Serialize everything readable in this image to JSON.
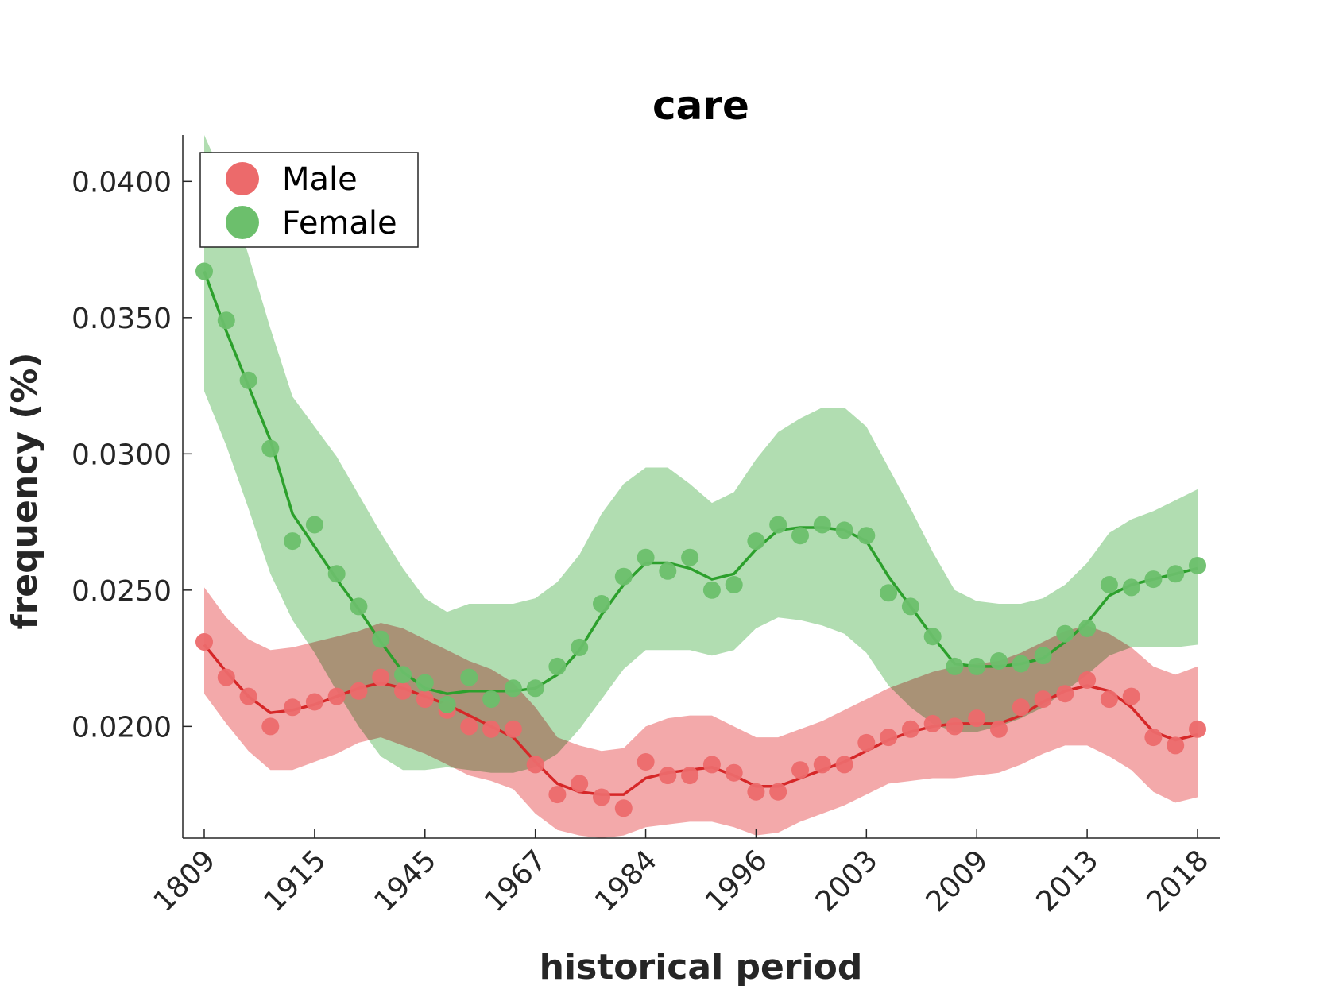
{
  "chart_data": {
    "type": "line",
    "title": "care",
    "xlabel": "historical period",
    "ylabel": "frequency (%)",
    "x_tick_labels": [
      "1809",
      "1915",
      "1945",
      "1967",
      "1984",
      "1996",
      "2003",
      "2009",
      "2013",
      "2018"
    ],
    "y_ticks": [
      0.02,
      0.025,
      0.03,
      0.035,
      0.04
    ],
    "y_tick_labels": [
      "0.0200",
      "0.0250",
      "0.0300",
      "0.0350",
      "0.0400"
    ],
    "ylim": [
      0.0159,
      0.0417
    ],
    "legend_placement": "top-left",
    "grid": false,
    "series": [
      {
        "name": "Male",
        "color": "#d62728",
        "marker_color": "#ec6a6b",
        "band_color": "#f2a0a1",
        "points": [
          0.0231,
          0.0218,
          0.0211,
          0.02,
          0.0207,
          0.0209,
          0.0211,
          0.0213,
          0.0218,
          0.0213,
          0.021,
          0.0206,
          0.02,
          0.0199,
          0.0199,
          0.0186,
          0.0175,
          0.0179,
          0.0174,
          0.017,
          0.0187,
          0.0182,
          0.0182,
          0.0186,
          0.0183,
          0.0176,
          0.0176,
          0.0184,
          0.0186,
          0.0186,
          0.0194,
          0.0196,
          0.0199,
          0.0201,
          0.02,
          0.0203,
          0.0199,
          0.0207,
          0.021,
          0.0212,
          0.0217,
          0.021,
          0.0211,
          0.0196,
          0.0193,
          0.0199
        ],
        "trend": [
          0.023,
          0.022,
          0.0211,
          0.0205,
          0.0206,
          0.0208,
          0.0211,
          0.0214,
          0.0216,
          0.0214,
          0.0211,
          0.0208,
          0.0204,
          0.02,
          0.0196,
          0.0187,
          0.0179,
          0.0176,
          0.0175,
          0.0175,
          0.0181,
          0.0183,
          0.0184,
          0.0185,
          0.0182,
          0.0178,
          0.0178,
          0.0181,
          0.0184,
          0.0187,
          0.0191,
          0.0195,
          0.0198,
          0.02,
          0.0201,
          0.0201,
          0.0201,
          0.0204,
          0.0209,
          0.0213,
          0.0215,
          0.0213,
          0.0207,
          0.0198,
          0.0195,
          0.0197
        ],
        "upper": [
          0.0251,
          0.024,
          0.0232,
          0.0228,
          0.0229,
          0.0231,
          0.0233,
          0.0235,
          0.0238,
          0.0236,
          0.0232,
          0.0228,
          0.0224,
          0.0221,
          0.0216,
          0.0207,
          0.0196,
          0.0193,
          0.0191,
          0.0192,
          0.02,
          0.0203,
          0.0204,
          0.0204,
          0.02,
          0.0196,
          0.0196,
          0.0199,
          0.0202,
          0.0206,
          0.021,
          0.0214,
          0.0217,
          0.022,
          0.0222,
          0.0223,
          0.0224,
          0.0227,
          0.0231,
          0.0235,
          0.0237,
          0.0234,
          0.0229,
          0.0222,
          0.0219,
          0.0222
        ],
        "lower": [
          0.0212,
          0.0201,
          0.0191,
          0.0184,
          0.0184,
          0.0187,
          0.019,
          0.0194,
          0.0196,
          0.0193,
          0.019,
          0.0186,
          0.0182,
          0.018,
          0.0177,
          0.0168,
          0.0162,
          0.016,
          0.0159,
          0.016,
          0.0163,
          0.0164,
          0.0165,
          0.0165,
          0.0163,
          0.016,
          0.0161,
          0.0165,
          0.0168,
          0.0171,
          0.0175,
          0.0179,
          0.018,
          0.0181,
          0.0181,
          0.0182,
          0.0183,
          0.0186,
          0.019,
          0.0193,
          0.0193,
          0.0189,
          0.0184,
          0.0176,
          0.0172,
          0.0174
        ]
      },
      {
        "name": "Female",
        "color": "#2ca02c",
        "marker_color": "#6cbf6c",
        "band_color": "#a8d9a8",
        "points": [
          0.0367,
          0.0349,
          0.0327,
          0.0302,
          0.0268,
          0.0274,
          0.0256,
          0.0244,
          0.0232,
          0.0219,
          0.0216,
          0.0208,
          0.0218,
          0.021,
          0.0214,
          0.0214,
          0.0222,
          0.0229,
          0.0245,
          0.0255,
          0.0262,
          0.0257,
          0.0262,
          0.025,
          0.0252,
          0.0268,
          0.0274,
          0.027,
          0.0274,
          0.0272,
          0.027,
          0.0249,
          0.0244,
          0.0233,
          0.0222,
          0.0222,
          0.0224,
          0.0223,
          0.0226,
          0.0234,
          0.0236,
          0.0252,
          0.0251,
          0.0254,
          0.0256,
          0.0259
        ],
        "trend": [
          0.0367,
          0.0345,
          0.0325,
          0.0305,
          0.0278,
          0.0266,
          0.0254,
          0.0243,
          0.0231,
          0.022,
          0.0214,
          0.0212,
          0.0213,
          0.0213,
          0.0213,
          0.0214,
          0.0219,
          0.0228,
          0.0241,
          0.0252,
          0.026,
          0.026,
          0.0258,
          0.0254,
          0.0256,
          0.0265,
          0.0272,
          0.0273,
          0.0273,
          0.0272,
          0.0268,
          0.0255,
          0.0244,
          0.0233,
          0.0223,
          0.0222,
          0.0222,
          0.0223,
          0.0225,
          0.0231,
          0.0238,
          0.0248,
          0.0252,
          0.0254,
          0.0256,
          0.0258
        ],
        "upper": [
          0.0417,
          0.0399,
          0.0373,
          0.0346,
          0.0321,
          0.031,
          0.0299,
          0.0285,
          0.0271,
          0.0258,
          0.0247,
          0.0242,
          0.0245,
          0.0245,
          0.0245,
          0.0247,
          0.0253,
          0.0263,
          0.0278,
          0.0289,
          0.0295,
          0.0295,
          0.0289,
          0.0282,
          0.0286,
          0.0298,
          0.0308,
          0.0313,
          0.0317,
          0.0317,
          0.031,
          0.0295,
          0.028,
          0.0264,
          0.025,
          0.0246,
          0.0245,
          0.0245,
          0.0247,
          0.0252,
          0.026,
          0.0271,
          0.0276,
          0.0279,
          0.0283,
          0.0287
        ],
        "lower": [
          0.0323,
          0.0303,
          0.028,
          0.0256,
          0.0239,
          0.0227,
          0.0213,
          0.02,
          0.0189,
          0.0184,
          0.0184,
          0.0185,
          0.0184,
          0.0183,
          0.0183,
          0.0185,
          0.019,
          0.0199,
          0.021,
          0.0221,
          0.0228,
          0.0228,
          0.0228,
          0.0226,
          0.0228,
          0.0236,
          0.024,
          0.0239,
          0.0237,
          0.0234,
          0.0227,
          0.0215,
          0.0207,
          0.0201,
          0.0198,
          0.0198,
          0.02,
          0.0203,
          0.0207,
          0.0213,
          0.0219,
          0.0226,
          0.0229,
          0.0229,
          0.0229,
          0.023
        ]
      }
    ]
  }
}
